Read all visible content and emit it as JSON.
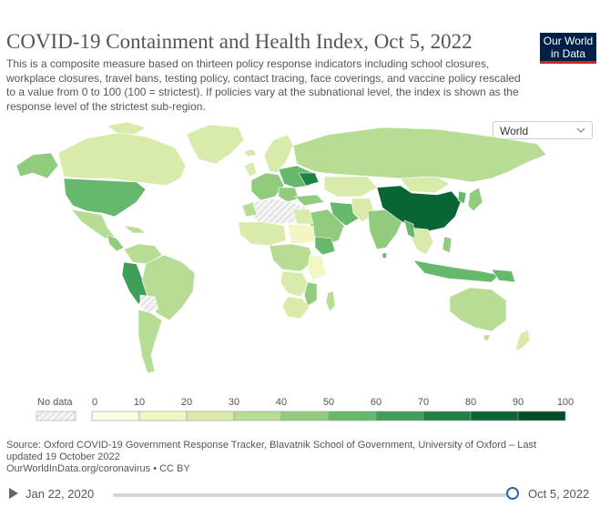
{
  "header": {
    "title": "COVID-19 Containment and Health Index, Oct 5, 2022",
    "subtitle": "This is a composite measure based on thirteen policy response indicators including school closures, workplace closures, travel bans, testing policy, contact tracing, face coverings, and vaccine policy rescaled to a value from 0 to 100 (100 = strictest). If policies vary at the subnational level, the index is shown as the response level of the strictest sub-region."
  },
  "logo": {
    "line1": "Our World",
    "line2": "in Data"
  },
  "region_select": {
    "selected": "World"
  },
  "legend": {
    "no_data_label": "No data",
    "ticks": [
      "0",
      "10",
      "20",
      "30",
      "40",
      "50",
      "60",
      "70",
      "80",
      "90",
      "100"
    ],
    "colors": [
      "#fbfbe6",
      "#f2f5c4",
      "#d9ebaa",
      "#b6dd93",
      "#91cc7e",
      "#66b86d",
      "#3f9e58",
      "#1f8144",
      "#0a6534",
      "#044d28"
    ]
  },
  "source": {
    "text": "Source: Oxford COVID-19 Government Response Tracker, Blavatnik School of Government, University of Oxford – Last updated 19 October 2022",
    "link": "OurWorldInData.org/coronavirus • CC BY"
  },
  "timeline": {
    "start": "Jan 22, 2020",
    "end": "Oct 5, 2022",
    "position": 1.0
  },
  "icons": {
    "play": "play-icon",
    "dropdown": "chevron-down-icon"
  }
}
